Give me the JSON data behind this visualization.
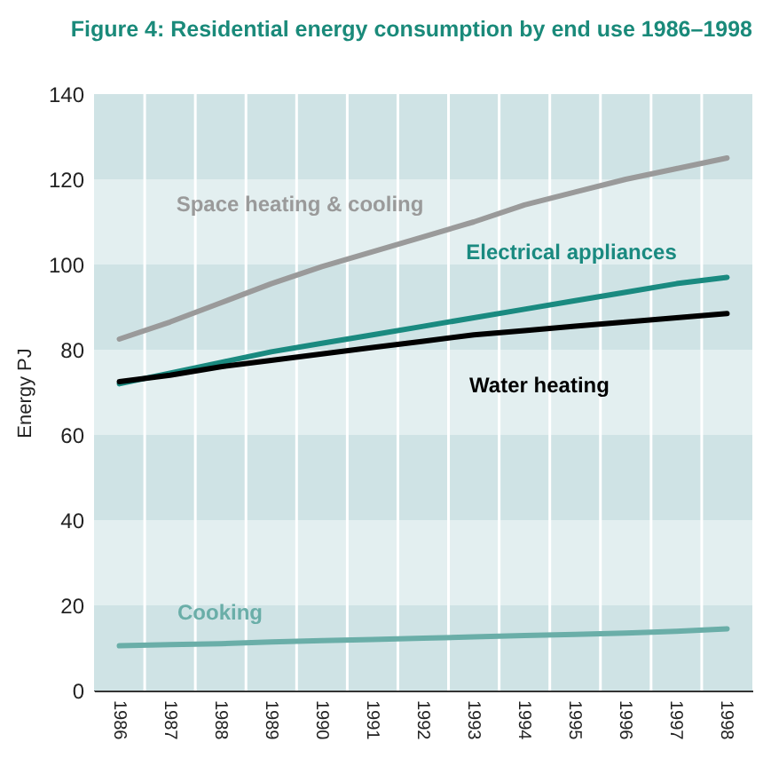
{
  "chart_data": {
    "type": "line",
    "title": "Figure 4: Residential energy consumption by end use 1986–1998",
    "ylabel": "Energy PJ",
    "categories": [
      "1986",
      "1987",
      "1988",
      "1989",
      "1990",
      "1991",
      "1992",
      "1993",
      "1994",
      "1995",
      "1996",
      "1997",
      "1998"
    ],
    "series": [
      {
        "name": "Space heating & cooling",
        "color": "#9a9a9a",
        "values": [
          82.5,
          86.5,
          91,
          95.5,
          99.5,
          103,
          106.5,
          110,
          114,
          117,
          120,
          122.5,
          125
        ]
      },
      {
        "name": "Electrical appliances",
        "color": "#1a8a80",
        "values": [
          72,
          74.5,
          77,
          79.5,
          81.5,
          83.5,
          85.5,
          87.5,
          89.5,
          91.5,
          93.5,
          95.5,
          97
        ]
      },
      {
        "name": "Water heating",
        "color": "#000000",
        "values": [
          72.5,
          74,
          76,
          77.5,
          79,
          80.5,
          82,
          83.5,
          84.5,
          85.5,
          86.5,
          87.5,
          88.5
        ]
      },
      {
        "name": "Cooking",
        "color": "#6aaea8",
        "values": [
          10.5,
          10.8,
          11,
          11.4,
          11.7,
          12,
          12.3,
          12.6,
          12.9,
          13.2,
          13.5,
          13.9,
          14.5
        ]
      }
    ],
    "ylim": [
      0,
      140
    ],
    "yticks": [
      0,
      20,
      40,
      60,
      80,
      100,
      120,
      140
    ],
    "grid": "x",
    "legend": false,
    "bands": [
      {
        "axis": "y",
        "from": 0,
        "to": 20,
        "color": "#cfe3e5"
      },
      {
        "axis": "y",
        "from": 20,
        "to": 40,
        "color": "#e3eff0"
      },
      {
        "axis": "y",
        "from": 40,
        "to": 60,
        "color": "#cfe3e5"
      },
      {
        "axis": "y",
        "from": 60,
        "to": 80,
        "color": "#e3eff0"
      },
      {
        "axis": "y",
        "from": 80,
        "to": 100,
        "color": "#cfe3e5"
      },
      {
        "axis": "y",
        "from": 100,
        "to": 120,
        "color": "#e3eff0"
      },
      {
        "axis": "y",
        "from": 120,
        "to": 140,
        "color": "#cfe3e5"
      }
    ]
  }
}
